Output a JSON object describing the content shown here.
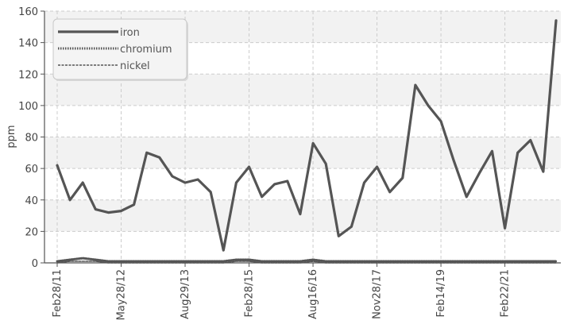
{
  "chart_data": {
    "type": "line",
    "title": "",
    "xlabel": "",
    "ylabel": "ppm",
    "ylim": [
      0,
      160
    ],
    "y_ticks": [
      0,
      20,
      40,
      60,
      80,
      100,
      120,
      140,
      160
    ],
    "x_tick_labels": [
      "Feb28/11",
      "May28/12",
      "Aug29/13",
      "Feb28/15",
      "Aug16/16",
      "Nov28/17",
      "Feb14/19",
      "Feb22/21"
    ],
    "x_tick_label_indices": [
      0,
      5,
      10,
      15,
      20,
      25,
      30,
      35
    ],
    "grid": true,
    "legend_position": "top-left",
    "colors": {
      "line": "#555555",
      "grid": "#cccccc",
      "band": "#f2f2f2",
      "axis": "#555555"
    },
    "series": [
      {
        "name": "iron",
        "style": "solid",
        "values": [
          62,
          40,
          51,
          34,
          32,
          33,
          37,
          70,
          67,
          55,
          51,
          53,
          45,
          8,
          51,
          61,
          42,
          50,
          52,
          31,
          76,
          63,
          17,
          23,
          51,
          61,
          45,
          54,
          113,
          100,
          90,
          65,
          42,
          57,
          71,
          22,
          70,
          78,
          58,
          154
        ]
      },
      {
        "name": "chromium",
        "style": "dotted",
        "values": [
          1,
          2,
          3,
          2,
          1,
          1,
          1,
          1,
          1,
          1,
          1,
          1,
          1,
          1,
          2,
          2,
          1,
          1,
          1,
          1,
          2,
          1,
          1,
          1,
          1,
          1,
          1,
          1,
          1,
          1,
          1,
          1,
          1,
          1,
          1,
          1,
          1,
          1,
          1,
          1
        ]
      },
      {
        "name": "nickel",
        "style": "dashed",
        "values": [
          0,
          1,
          1,
          1,
          0,
          0,
          0,
          0,
          0,
          0,
          0,
          0,
          0,
          0,
          1,
          1,
          0,
          0,
          0,
          0,
          1,
          0,
          0,
          0,
          0,
          0,
          0,
          0,
          0,
          0,
          0,
          0,
          0,
          0,
          0,
          0,
          0,
          0,
          0,
          0
        ]
      }
    ]
  }
}
